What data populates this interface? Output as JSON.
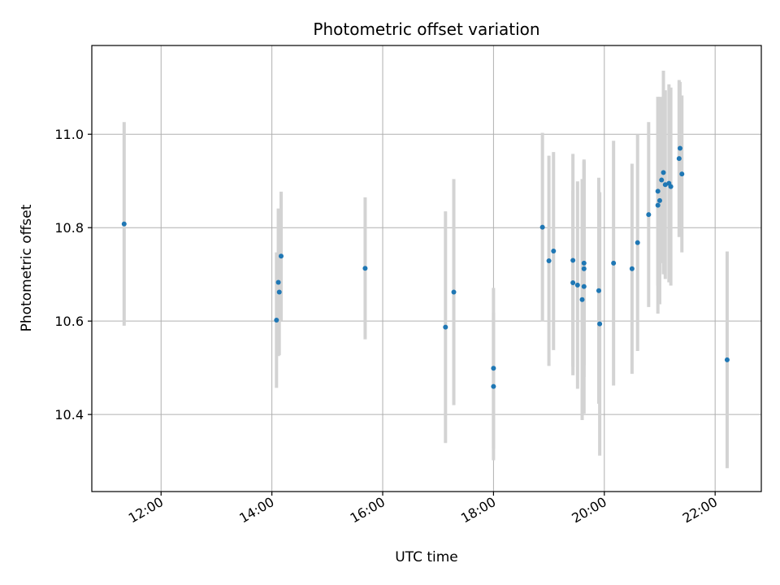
{
  "chart_data": {
    "type": "scatter",
    "title": "Photometric offset variation",
    "xlabel": "UTC time",
    "ylabel": "Photometric offset",
    "x_ticks": [
      "12:00",
      "14:00",
      "16:00",
      "18:00",
      "20:00",
      "22:00"
    ],
    "y_ticks": [
      "10.4",
      "10.6",
      "10.8",
      "11.0"
    ],
    "xlim": [
      "10:45",
      "22:50"
    ],
    "ylim": [
      10.235,
      11.19
    ],
    "grid": true,
    "colors": {
      "point": "#1f77b4",
      "errorbar": "#d3d3d3"
    },
    "points": [
      {
        "x": "11:20",
        "y": 10.808,
        "yerr": 0.218
      },
      {
        "x": "14:05",
        "y": 10.602,
        "yerr": 0.145
      },
      {
        "x": "14:07",
        "y": 10.683,
        "yerr": 0.158
      },
      {
        "x": "14:08",
        "y": 10.662,
        "yerr": 0.135
      },
      {
        "x": "14:10",
        "y": 10.739,
        "yerr": 0.138
      },
      {
        "x": "15:41",
        "y": 10.713,
        "yerr": 0.152
      },
      {
        "x": "17:08",
        "y": 10.587,
        "yerr": 0.248
      },
      {
        "x": "17:17",
        "y": 10.662,
        "yerr": 0.242
      },
      {
        "x": "18:00",
        "y": 10.499,
        "yerr": 0.172
      },
      {
        "x": "18:00",
        "y": 10.46,
        "yerr": 0.158
      },
      {
        "x": "18:53",
        "y": 10.801,
        "yerr": 0.202
      },
      {
        "x": "19:00",
        "y": 10.729,
        "yerr": 0.225
      },
      {
        "x": "19:05",
        "y": 10.75,
        "yerr": 0.212
      },
      {
        "x": "19:26",
        "y": 10.73,
        "yerr": 0.228
      },
      {
        "x": "19:26",
        "y": 10.682,
        "yerr": 0.198
      },
      {
        "x": "19:31",
        "y": 10.677,
        "yerr": 0.222
      },
      {
        "x": "19:36",
        "y": 10.646,
        "yerr": 0.258
      },
      {
        "x": "19:38",
        "y": 10.712,
        "yerr": 0.232
      },
      {
        "x": "19:38",
        "y": 10.724,
        "yerr": 0.218
      },
      {
        "x": "19:38",
        "y": 10.674,
        "yerr": 0.272
      },
      {
        "x": "19:54",
        "y": 10.665,
        "yerr": 0.242
      },
      {
        "x": "19:55",
        "y": 10.594,
        "yerr": 0.282
      },
      {
        "x": "20:10",
        "y": 10.724,
        "yerr": 0.262
      },
      {
        "x": "20:30",
        "y": 10.712,
        "yerr": 0.225
      },
      {
        "x": "20:36",
        "y": 10.768,
        "yerr": 0.232
      },
      {
        "x": "20:48",
        "y": 10.828,
        "yerr": 0.198
      },
      {
        "x": "20:58",
        "y": 10.848,
        "yerr": 0.232
      },
      {
        "x": "20:58",
        "y": 10.878,
        "yerr": 0.202
      },
      {
        "x": "21:00",
        "y": 10.858,
        "yerr": 0.222
      },
      {
        "x": "21:02",
        "y": 10.902,
        "yerr": 0.178
      },
      {
        "x": "21:04",
        "y": 10.918,
        "yerr": 0.218
      },
      {
        "x": "21:06",
        "y": 10.892,
        "yerr": 0.202
      },
      {
        "x": "21:10",
        "y": 10.895,
        "yerr": 0.212
      },
      {
        "x": "21:12",
        "y": 10.888,
        "yerr": 0.212
      },
      {
        "x": "21:21",
        "y": 10.948,
        "yerr": 0.168
      },
      {
        "x": "21:22",
        "y": 10.97,
        "yerr": 0.142
      },
      {
        "x": "21:24",
        "y": 10.915,
        "yerr": 0.168
      },
      {
        "x": "22:13",
        "y": 10.517,
        "yerr": 0.232
      }
    ]
  }
}
